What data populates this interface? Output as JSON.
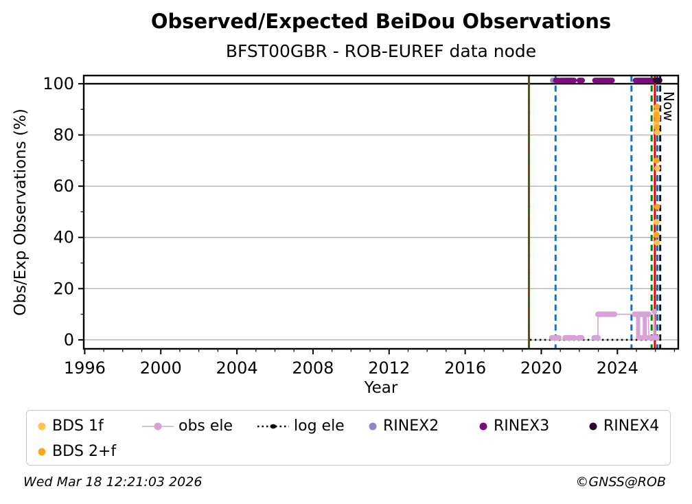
{
  "footer": {
    "left": "Wed Mar 18 12:21:03 2026",
    "right": "©GNSS@ROB"
  },
  "chart_data": {
    "type": "scatter",
    "title": "Observed/Expected BeiDou Observations",
    "subtitle": "BFST00GBR - ROB-EUREF data node",
    "xlabel": "Year",
    "ylabel": "Obs/Exp Observations (%)",
    "xlim": [
      1995.95,
      2027.2
    ],
    "ylim": [
      -3.5,
      103.2
    ],
    "x_ticks": [
      1996,
      2000,
      2004,
      2008,
      2012,
      2016,
      2020,
      2024
    ],
    "x_minor_step": 1,
    "y_ticks": [
      0,
      20,
      40,
      60,
      80,
      100
    ],
    "y_minor_step": 10,
    "grid_y": [
      0,
      20,
      40,
      60,
      80
    ],
    "grid_color": "#b3b3b3",
    "hundred_line_y": 100,
    "annotations": [
      {
        "text": "Now",
        "x": 2026.25,
        "rotation": 90
      }
    ],
    "vlines": [
      {
        "name": "event-green-2019",
        "x": 2019.35,
        "color": "#007f00",
        "style": "solid",
        "width": 3
      },
      {
        "name": "event-red-2019",
        "x": 2019.35,
        "color": "#ff0000",
        "style": "dotted",
        "width": 2.2
      },
      {
        "name": "event-blue-2020",
        "x": 2020.75,
        "color": "#1a6fba",
        "style": "dashed",
        "width": 3
      },
      {
        "name": "event-blue-2024",
        "x": 2024.74,
        "color": "#1a6fba",
        "style": "dashed",
        "width": 3
      },
      {
        "name": "event-green-2025",
        "x": 2025.8,
        "color": "#007f00",
        "style": "dashed",
        "width": 3
      },
      {
        "name": "event-red-2025",
        "x": 2025.97,
        "color": "#e8000b",
        "style": "solid",
        "width": 3
      },
      {
        "name": "event-blue-2026",
        "x": 2026.1,
        "color": "#1a6fba",
        "style": "dashed",
        "width": 3
      },
      {
        "name": "now-line",
        "x": 2026.25,
        "color": "#111111",
        "style": "dashed",
        "width": 3
      }
    ],
    "series": [
      {
        "name": "log ele",
        "type": "dotted-line",
        "color": "#000000",
        "y": 0,
        "x1": 2019.4,
        "x2": 2026.3
      },
      {
        "name": "obs ele",
        "type": "line-marker",
        "color": "#d7a3d7",
        "runs": [
          [
            [
              2020.55,
              0.8
            ],
            [
              2020.92,
              0.8
            ]
          ],
          [
            [
              2021.25,
              0.8
            ],
            [
              2021.75,
              0.8
            ]
          ],
          [
            [
              2021.97,
              0.8
            ],
            [
              2022.12,
              0.8
            ]
          ],
          [
            [
              2022.75,
              0.8
            ],
            [
              2022.98,
              0.8
            ],
            [
              2022.98,
              10
            ],
            [
              2025.05,
              10
            ],
            [
              2025.09,
              0.8
            ],
            [
              2025.13,
              10
            ],
            [
              2025.4,
              10
            ],
            [
              2025.44,
              0.8
            ],
            [
              2025.48,
              10
            ],
            [
              2025.62,
              10
            ],
            [
              2025.66,
              0.8
            ],
            [
              2025.9,
              0.8
            ],
            [
              2025.94,
              11
            ],
            [
              2025.98,
              0.8
            ],
            [
              2026.12,
              0.8
            ]
          ]
        ],
        "thick_h": [
          [
            2020.55,
            2020.92,
            0.8
          ],
          [
            2021.25,
            2021.75,
            0.8
          ],
          [
            2021.97,
            2022.12,
            0.8
          ],
          [
            2022.78,
            2022.98,
            0.8
          ],
          [
            2022.98,
            2023.85,
            10
          ],
          [
            2024.9,
            2025.65,
            10
          ]
        ],
        "thick_v": [
          [
            2025.09,
            0.8,
            10
          ],
          [
            2025.44,
            0.8,
            10
          ]
        ],
        "dots": [
          [
            2025.2,
            0.8
          ],
          [
            2025.32,
            0.8
          ],
          [
            2025.55,
            0.8
          ],
          [
            2025.75,
            0.8
          ],
          [
            2025.85,
            0.8
          ],
          [
            2025.94,
            11
          ],
          [
            2026.0,
            0.8
          ],
          [
            2026.08,
            0.8
          ]
        ]
      },
      {
        "name": "RINEX2",
        "type": "hsegments",
        "color": "#8e8ac4",
        "y": 101.3,
        "segments": [
          [
            2020.6,
            2020.76
          ]
        ]
      },
      {
        "name": "RINEX3",
        "type": "hsegments",
        "color": "#7d0b7d",
        "y": 101.3,
        "segments": [
          [
            2020.76,
            2020.9
          ],
          [
            2021.02,
            2021.72
          ],
          [
            2022.0,
            2022.15
          ],
          [
            2022.82,
            2023.72
          ],
          [
            2024.95,
            2026.0
          ]
        ]
      },
      {
        "name": "RINEX4",
        "type": "hsegments",
        "color": "#2d072d",
        "y": 101.3,
        "segments": [
          [
            2026.0,
            2026.22
          ]
        ]
      },
      {
        "name": "BDS 1f",
        "type": "scatter",
        "color": "#ffc44d",
        "points": [
          [
            2026.06,
            89
          ],
          [
            2026.1,
            87
          ],
          [
            2026.04,
            84.5
          ],
          [
            2026.09,
            81
          ],
          [
            2026.1,
            67
          ],
          [
            2026.06,
            46
          ],
          [
            2026.08,
            38
          ]
        ]
      },
      {
        "name": "BDS 2+f",
        "type": "scatter",
        "color": "#ffa723",
        "points": [
          [
            2026.08,
            91
          ],
          [
            2026.05,
            88
          ],
          [
            2026.1,
            86
          ],
          [
            2026.07,
            83
          ],
          [
            2026.06,
            70
          ],
          [
            2026.09,
            52
          ],
          [
            2026.05,
            41
          ]
        ]
      }
    ],
    "legend": {
      "position": "bottom",
      "entries": [
        {
          "label": "BDS 1f",
          "color": "#ffc44d",
          "marker": "dot"
        },
        {
          "label": "obs ele",
          "color": "#d7a3d7",
          "marker": "line-dot"
        },
        {
          "label": "log ele",
          "color": "#000000",
          "marker": "dotted-line-dot"
        },
        {
          "label": "RINEX2",
          "color": "#8e8ac4",
          "marker": "dot"
        },
        {
          "label": "RINEX3",
          "color": "#7d0b7d",
          "marker": "dot"
        },
        {
          "label": "RINEX4",
          "color": "#2d072d",
          "marker": "dot"
        },
        {
          "label": "BDS 2+f",
          "color": "#ffa723",
          "marker": "dot"
        }
      ]
    }
  }
}
